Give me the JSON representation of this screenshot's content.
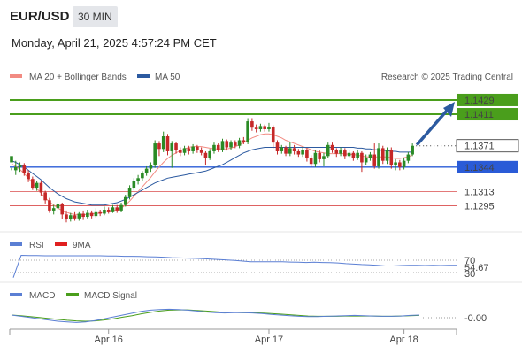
{
  "header": {
    "symbol": "EUR/USD",
    "timeframe": "30 MIN",
    "datetime": "Monday, April 21, 2025 4:57:24 PM CET"
  },
  "legend": {
    "ma20_label": "MA 20 + Bollinger Bands",
    "ma20_color": "#f28b82",
    "ma50_label": "MA 50",
    "ma50_color": "#2c5aa0",
    "credit": "Research © 2025 Trading Central"
  },
  "levels": {
    "resistance": [
      {
        "value": 1.1429,
        "label": "1.1429",
        "color": "#4a9e1c"
      },
      {
        "value": 1.1411,
        "label": "1.1411",
        "color": "#4a9e1c"
      }
    ],
    "pivot": {
      "value": 1.1344,
      "label": "1.1344",
      "color": "#2a5bd7"
    },
    "support": [
      {
        "value": 1.1313,
        "label": "1.1313",
        "color": "#d02020"
      },
      {
        "value": 1.1295,
        "label": "1.1295",
        "color": "#d02020"
      }
    ],
    "current": {
      "value": 1.1371,
      "label": "1.1371"
    }
  },
  "rsi": {
    "label": "RSI",
    "ma_label": "9MA",
    "value_label": "54.67",
    "upper_label": "70",
    "lower_label": "30",
    "rsi_color": "#5b7fd4",
    "ma_color": "#e02020"
  },
  "macd": {
    "label": "MACD",
    "signal_label": "MACD Signal",
    "value_label": "-0.00",
    "macd_color": "#5b7fd4",
    "signal_color": "#4a9e1c"
  },
  "chart_data": {
    "type": "candlestick",
    "ylim": [
      1.1262,
      1.1448
    ],
    "xticks": [
      {
        "label": "Apr 16",
        "index": 23
      },
      {
        "label": "Apr 17",
        "index": 61
      },
      {
        "label": "Apr 18",
        "index": 93
      }
    ],
    "candles": [
      [
        1.135,
        1.1358,
        1.1343,
        1.134
      ],
      [
        1.134,
        1.1344,
        1.1352,
        1.1334
      ],
      [
        1.1344,
        1.1346,
        1.135,
        1.1338
      ],
      [
        1.1346,
        1.1337,
        1.1349,
        1.1333
      ],
      [
        1.1337,
        1.1329,
        1.134,
        1.1325
      ],
      [
        1.1329,
        1.1318,
        1.1332,
        1.1315
      ],
      [
        1.1318,
        1.1324,
        1.1327,
        1.1314
      ],
      [
        1.1324,
        1.1312,
        1.1326,
        1.1308
      ],
      [
        1.1312,
        1.1302,
        1.1314,
        1.1298
      ],
      [
        1.1302,
        1.1289,
        1.1305,
        1.1286
      ],
      [
        1.1289,
        1.1292,
        1.1296,
        1.1284
      ],
      [
        1.1292,
        1.1297,
        1.13,
        1.1288
      ],
      [
        1.1297,
        1.1284,
        1.1299,
        1.1278
      ],
      [
        1.1284,
        1.1278,
        1.1289,
        1.1274
      ],
      [
        1.1278,
        1.1283,
        1.1286,
        1.1275
      ],
      [
        1.1283,
        1.1279,
        1.1288,
        1.1276
      ],
      [
        1.1279,
        1.1285,
        1.1288,
        1.1276
      ],
      [
        1.1285,
        1.1281,
        1.1289,
        1.1277
      ],
      [
        1.1281,
        1.1286,
        1.129,
        1.1279
      ],
      [
        1.1286,
        1.1282,
        1.1289,
        1.1279
      ],
      [
        1.1282,
        1.1288,
        1.1292,
        1.128
      ],
      [
        1.1288,
        1.1285,
        1.129,
        1.1282
      ],
      [
        1.1285,
        1.129,
        1.1294,
        1.1283
      ],
      [
        1.129,
        1.1288,
        1.1293,
        1.1285
      ],
      [
        1.1288,
        1.1293,
        1.1296,
        1.1286
      ],
      [
        1.1293,
        1.1289,
        1.1296,
        1.1286
      ],
      [
        1.1289,
        1.1296,
        1.1299,
        1.1287
      ],
      [
        1.1296,
        1.1306,
        1.1309,
        1.1294
      ],
      [
        1.1306,
        1.1318,
        1.1321,
        1.1303
      ],
      [
        1.1318,
        1.1326,
        1.133,
        1.1315
      ],
      [
        1.1326,
        1.133,
        1.1334,
        1.1322
      ],
      [
        1.133,
        1.1336,
        1.1339,
        1.1327
      ],
      [
        1.1336,
        1.1342,
        1.1345,
        1.1333
      ],
      [
        1.1342,
        1.1346,
        1.135,
        1.1338
      ],
      [
        1.1346,
        1.1374,
        1.1378,
        1.1343
      ],
      [
        1.1374,
        1.1367,
        1.1377,
        1.1358
      ],
      [
        1.1367,
        1.1383,
        1.1389,
        1.1363
      ],
      [
        1.1383,
        1.1364,
        1.1386,
        1.1359
      ],
      [
        1.1364,
        1.1374,
        1.1377,
        1.1343
      ],
      [
        1.1374,
        1.1366,
        1.1376,
        1.1361
      ],
      [
        1.1366,
        1.1362,
        1.1369,
        1.1358
      ],
      [
        1.1362,
        1.1368,
        1.1371,
        1.1359
      ],
      [
        1.1368,
        1.1364,
        1.1371,
        1.136
      ],
      [
        1.1364,
        1.137,
        1.1373,
        1.1361
      ],
      [
        1.137,
        1.1366,
        1.1372,
        1.1362
      ],
      [
        1.1366,
        1.1362,
        1.1369,
        1.1359
      ],
      [
        1.1362,
        1.1356,
        1.1364,
        1.1346
      ],
      [
        1.1356,
        1.1364,
        1.1367,
        1.1353
      ],
      [
        1.1364,
        1.1372,
        1.1375,
        1.1361
      ],
      [
        1.1372,
        1.1366,
        1.1374,
        1.1363
      ],
      [
        1.1366,
        1.1377,
        1.138,
        1.1363
      ],
      [
        1.1377,
        1.1369,
        1.1379,
        1.1365
      ],
      [
        1.1369,
        1.1375,
        1.1378,
        1.1366
      ],
      [
        1.1375,
        1.1371,
        1.1378,
        1.1368
      ],
      [
        1.1371,
        1.1378,
        1.1381,
        1.1368
      ],
      [
        1.1378,
        1.1376,
        1.1382,
        1.1373
      ],
      [
        1.1376,
        1.1402,
        1.1406,
        1.1373
      ],
      [
        1.1402,
        1.1394,
        1.1406,
        1.139
      ],
      [
        1.1394,
        1.1392,
        1.1398,
        1.1388
      ],
      [
        1.1392,
        1.1396,
        1.1399,
        1.1389
      ],
      [
        1.1396,
        1.1392,
        1.1398,
        1.1389
      ],
      [
        1.1392,
        1.1395,
        1.14,
        1.1389
      ],
      [
        1.1395,
        1.1375,
        1.1397,
        1.1368
      ],
      [
        1.1375,
        1.1364,
        1.1378,
        1.136
      ],
      [
        1.1364,
        1.1369,
        1.1372,
        1.1361
      ],
      [
        1.1369,
        1.1361,
        1.1371,
        1.1358
      ],
      [
        1.1361,
        1.1368,
        1.1376,
        1.1358
      ],
      [
        1.1368,
        1.1364,
        1.1372,
        1.136
      ],
      [
        1.1364,
        1.136,
        1.1367,
        1.1357
      ],
      [
        1.136,
        1.1366,
        1.1369,
        1.1357
      ],
      [
        1.1366,
        1.1356,
        1.1368,
        1.1351
      ],
      [
        1.1356,
        1.1348,
        1.1359,
        1.1344
      ],
      [
        1.1348,
        1.1362,
        1.1366,
        1.1344
      ],
      [
        1.1362,
        1.1354,
        1.1365,
        1.135
      ],
      [
        1.1354,
        1.1358,
        1.1362,
        1.1345
      ],
      [
        1.1358,
        1.1372,
        1.1375,
        1.1355
      ],
      [
        1.1372,
        1.1366,
        1.1375,
        1.1362
      ],
      [
        1.1366,
        1.1361,
        1.1368,
        1.1357
      ],
      [
        1.1361,
        1.1365,
        1.1369,
        1.1358
      ],
      [
        1.1365,
        1.1358,
        1.1368,
        1.1354
      ],
      [
        1.1358,
        1.1362,
        1.1366,
        1.1355
      ],
      [
        1.1362,
        1.1356,
        1.1364,
        1.1352
      ],
      [
        1.1356,
        1.1362,
        1.1366,
        1.1353
      ],
      [
        1.1362,
        1.135,
        1.1364,
        1.1338
      ],
      [
        1.135,
        1.1356,
        1.136,
        1.1347
      ],
      [
        1.1356,
        1.136,
        1.1363,
        1.1352
      ],
      [
        1.136,
        1.1345,
        1.1374,
        1.1342
      ],
      [
        1.1345,
        1.1368,
        1.1374,
        1.1342
      ],
      [
        1.1368,
        1.1352,
        1.1371,
        1.1348
      ],
      [
        1.1352,
        1.1366,
        1.1369,
        1.1348
      ],
      [
        1.1366,
        1.1346,
        1.1369,
        1.1342
      ],
      [
        1.1346,
        1.135,
        1.1354,
        1.134
      ],
      [
        1.135,
        1.1344,
        1.1353,
        1.134
      ],
      [
        1.1344,
        1.1352,
        1.1355,
        1.1341
      ],
      [
        1.1352,
        1.136,
        1.1363,
        1.1349
      ],
      [
        1.136,
        1.1371,
        1.1374,
        1.1358
      ]
    ],
    "ma50": [
      1.1352,
      1.135,
      1.1347,
      1.1344,
      1.134,
      1.1336,
      1.1332,
      1.1328,
      1.1323,
      1.1318,
      1.1314,
      1.131,
      1.1307,
      1.1304,
      1.1302,
      1.13,
      1.1299,
      1.1298,
      1.1297,
      1.1296,
      1.1296,
      1.1296,
      1.1296,
      1.1297,
      1.1298,
      1.1299,
      1.1301,
      1.1303,
      1.1306,
      1.1309,
      1.1312,
      1.1315,
      1.1318,
      1.1321,
      1.1324,
      1.1326,
      1.1328,
      1.133,
      1.1331,
      1.1332,
      1.1333,
      1.1334,
      1.1335,
      1.1336,
      1.1337,
      1.1338,
      1.1339,
      1.1341,
      1.1343,
      1.1345,
      1.1347,
      1.135,
      1.1353,
      1.1356,
      1.1359,
      1.1362,
      1.1364,
      1.1366,
      1.1367,
      1.1368,
      1.1369,
      1.1369,
      1.1369,
      1.1369,
      1.1369,
      1.1369,
      1.1369,
      1.1369,
      1.1369,
      1.1369,
      1.1369,
      1.1369,
      1.1369,
      1.1369,
      1.1369,
      1.1369,
      1.1369,
      1.1369,
      1.1369,
      1.1369,
      1.1369,
      1.1369,
      1.1368,
      1.1368,
      1.1367,
      1.1367,
      1.1366,
      1.1366,
      1.1365,
      1.1365,
      1.1364,
      1.1364,
      1.1363,
      1.1363,
      1.1363,
      1.1363
    ],
    "ma20": [
      1.1348,
      1.1345,
      1.1341,
      1.1336,
      1.133,
      1.1324,
      1.1317,
      1.1311,
      1.1305,
      1.13,
      1.1296,
      1.1292,
      1.1289,
      1.1287,
      1.1285,
      1.1284,
      1.1284,
      1.1284,
      1.1284,
      1.1285,
      1.1285,
      1.1286,
      1.1287,
      1.1288,
      1.1289,
      1.129,
      1.1292,
      1.1296,
      1.1301,
      1.1307,
      1.1313,
      1.1319,
      1.1325,
      1.1331,
      1.1338,
      1.1344,
      1.135,
      1.1355,
      1.1359,
      1.1362,
      1.1365,
      1.1367,
      1.1369,
      1.137,
      1.137,
      1.137,
      1.1369,
      1.1368,
      1.1367,
      1.1367,
      1.1367,
      1.1367,
      1.1368,
      1.137,
      1.1372,
      1.1375,
      1.1378,
      1.1381,
      1.1383,
      1.1385,
      1.1386,
      1.1386,
      1.1385,
      1.1383,
      1.1381,
      1.1378,
      1.1376,
      1.1374,
      1.1372,
      1.137,
      1.1368,
      1.1366,
      1.1364,
      1.1363,
      1.1362,
      1.1361,
      1.1361,
      1.1361,
      1.1361,
      1.1361,
      1.136,
      1.136,
      1.1359,
      1.1358,
      1.1357,
      1.1357,
      1.1357,
      1.1357,
      1.1357,
      1.1357,
      1.1356,
      1.1355,
      1.1355,
      1.1356,
      1.1357,
      1.1359
    ],
    "rsi_values": [
      1,
      98,
      97,
      97,
      96,
      96,
      96,
      96,
      96,
      96,
      96,
      96,
      95,
      95,
      94,
      94,
      93,
      92,
      91,
      90,
      88,
      87,
      86,
      85,
      84,
      82,
      80,
      78,
      76,
      73,
      70,
      70,
      70,
      70,
      70,
      69,
      68,
      67,
      68,
      67,
      66,
      65,
      62,
      60,
      58,
      57,
      55,
      52,
      52,
      54,
      55,
      55,
      54,
      55,
      54,
      55,
      55
    ],
    "macd_values": [
      0.0,
      -0.0004,
      -0.0008,
      -0.0012,
      -0.0016,
      -0.002,
      -0.0022,
      -0.0024,
      -0.0022,
      -0.0018,
      -0.0012,
      -0.0006,
      0.0,
      0.0006,
      0.0012,
      0.0016,
      0.0018,
      0.0019,
      0.0018,
      0.0016,
      0.0013,
      0.001,
      0.0008,
      0.0007,
      0.0008,
      0.0008,
      0.0007,
      0.0005,
      0.0002,
      0.0,
      -0.0002,
      -0.0004,
      -0.0005,
      -0.0005,
      -0.0004,
      -0.0003,
      -0.0002,
      -0.0001,
      -0.0002,
      -0.0003,
      -0.0004,
      -0.0004,
      -0.0003,
      -0.0001,
      0.0
    ],
    "signal_values": [
      0.0,
      -0.0002,
      -0.0005,
      -0.0008,
      -0.0011,
      -0.0014,
      -0.0017,
      -0.0019,
      -0.002,
      -0.0019,
      -0.0016,
      -0.0012,
      -0.0007,
      -0.0002,
      0.0004,
      0.0009,
      0.0013,
      0.0016,
      0.0017,
      0.0017,
      0.0015,
      0.0013,
      0.0011,
      0.0009,
      0.0009,
      0.0008,
      0.0008,
      0.0007,
      0.0005,
      0.0003,
      0.0001,
      -0.0001,
      -0.0003,
      -0.0004,
      -0.0004,
      -0.0004,
      -0.0003,
      -0.0003,
      -0.0003,
      -0.0003,
      -0.0004,
      -0.0004,
      -0.0003,
      -0.0002,
      -0.0001
    ]
  }
}
